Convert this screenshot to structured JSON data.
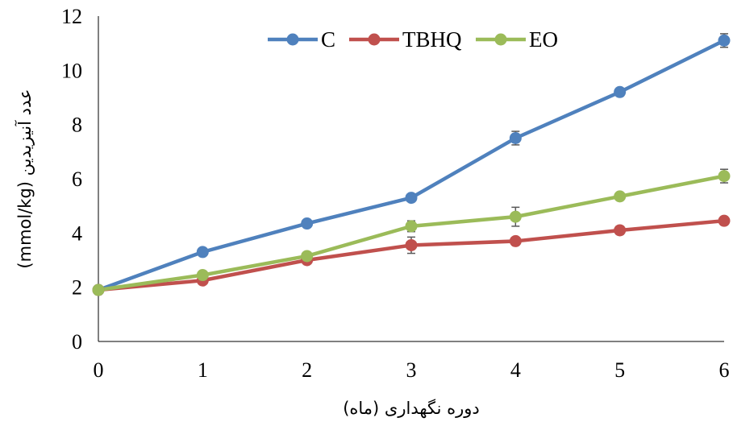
{
  "chart_data": {
    "type": "line",
    "title": "",
    "xlabel": "دوره نگهداری (ماه)",
    "ylabel": "عدد آنیزیدین (mmol/kg)",
    "x": [
      0,
      1,
      2,
      3,
      4,
      5,
      6
    ],
    "x_tick_labels": [
      "0",
      "1",
      "2",
      "3",
      "4",
      "5",
      "6"
    ],
    "y_ticks": [
      0,
      2,
      4,
      6,
      8,
      10,
      12
    ],
    "xlim": [
      0,
      6
    ],
    "ylim": [
      0,
      12
    ],
    "grid": false,
    "legend_position": "top",
    "series": [
      {
        "name": "C",
        "color": "#4F81BD",
        "values": [
          1.9,
          3.3,
          4.35,
          5.3,
          7.5,
          9.2,
          11.1
        ],
        "errors": [
          0.05,
          0.1,
          0.1,
          0.1,
          0.25,
          0.15,
          0.25
        ]
      },
      {
        "name": "TBHQ",
        "color": "#C0504D",
        "values": [
          1.9,
          2.25,
          3.0,
          3.55,
          3.7,
          4.1,
          4.45
        ],
        "errors": [
          0.05,
          0.1,
          0.1,
          0.3,
          0.1,
          0.15,
          0.15
        ]
      },
      {
        "name": "EO",
        "color": "#9BBB59",
        "values": [
          1.9,
          2.45,
          3.15,
          4.25,
          4.6,
          5.35,
          6.1
        ],
        "errors": [
          0.05,
          0.1,
          0.1,
          0.2,
          0.35,
          0.1,
          0.25
        ]
      }
    ]
  }
}
